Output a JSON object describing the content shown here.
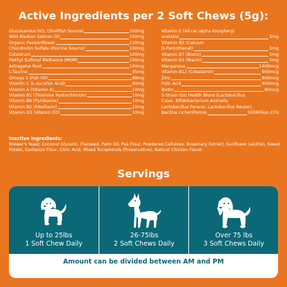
{
  "active": {
    "title": "Active Ingredients per 2 Soft Chews (5g):",
    "left": [
      {
        "name": "Glucosamine HCL (Shellfish Source)",
        "amount": "200mg"
      },
      {
        "name": "Wild Alaskan Salmon Oil",
        "amount": "150mg"
      },
      {
        "name": "Organic  Passionflower",
        "amount": "120mg"
      },
      {
        "name": "Chondroitin Sulfate (Porcine Source)",
        "amount": "100mg"
      },
      {
        "name": "Colostrum",
        "amount": "100mg"
      },
      {
        "name": "Methyl Sulfonyl Methance (MSM)",
        "amount": "100mg"
      },
      {
        "name": "Astragalus  Root",
        "amount": "100mg"
      },
      {
        "name": "L-Taurine",
        "amount": "95mg"
      },
      {
        "name": "Omega 3 (Fish Oil)",
        "amount": "68mg"
      },
      {
        "name": "Vitamin C (L-ascorbic Acid)",
        "amount": "60mg"
      },
      {
        "name": "Vitamin A (Vitamin A)",
        "amount": "10mg"
      },
      {
        "name": "Vitamin B1 (Thiamine Hydrochloride)",
        "amount": "10mg"
      },
      {
        "name": "Vitamin B6 (Pyridoxine)",
        "amount": "10mg"
      },
      {
        "name": "Vitamin B2 (Riboflavin)",
        "amount": "10mg"
      },
      {
        "name": "Vitamin D3 (Vitamin D3)",
        "amount": "10mg"
      }
    ],
    "right_intro": [
      "Vitamin E (All-rac-alpha-tocopheryl"
    ],
    "right": [
      {
        "name": "acetate)",
        "amount": "5mg"
      },
      {
        "name": "Vitamin B5 (Calcium",
        "amount": ""
      },
      {
        "name": "D-Pantothenat)",
        "amount": "5mg"
      },
      {
        "name": "Vitamin B7 (Biotin)",
        "amount": "5mg"
      },
      {
        "name": "Vitamin B3 (Niacin)",
        "amount": "5mg"
      },
      {
        "name": "Manganese",
        "amount": "1400mcg"
      },
      {
        "name": "Vitamin B12 (Cobalamin)",
        "amount": "900mcg"
      },
      {
        "name": "Zinc",
        "amount": "600mcg"
      },
      {
        "name": "Folic Acid",
        "amount": "400mcg"
      },
      {
        "name": "Biotin",
        "amount": "80mcg"
      }
    ],
    "probiotic_lines": [
      "5-Strain Gut Health Blend (Lactobacillus",
      "Casei, Bifidobacterium Animalis,",
      "Lactobacillus Paracei, Lactobacillus Reuteri,"
    ],
    "probiotic_last": {
      "name": "Bacillus Licheniformis",
      "amount": "500Million CFU"
    }
  },
  "inactive": {
    "label": "Inactive Ingredients:",
    "text": "Brewer's Yeast, Coconut Glycerin, Flaxseed, Palm Oil, Pea Flour, Powdered Cellulose, Rosemary Extract, Sunflower Lecithin, Sweet Potato, Garbanzo Flour, Citric Acid, Mixed Tocopherols (Preservative), Natural Chicken Flavor."
  },
  "servings": {
    "title": "Servings",
    "cards": [
      {
        "weight": "Up to 25lbs",
        "dose": "1 Soft Chew Daily",
        "icon": "small-dog-icon"
      },
      {
        "weight": "26-75lbs",
        "dose": "2 Soft Chews Daily",
        "icon": "doberman-icon"
      },
      {
        "weight": "Over 75 lbs",
        "dose": "3 Soft Chews Daily",
        "icon": "large-dog-icon"
      }
    ],
    "note": "Amount can be divided between AM and PM"
  },
  "colors": {
    "background": "#e9761f",
    "teal": "#0b6877",
    "panel": "#ffffff"
  }
}
